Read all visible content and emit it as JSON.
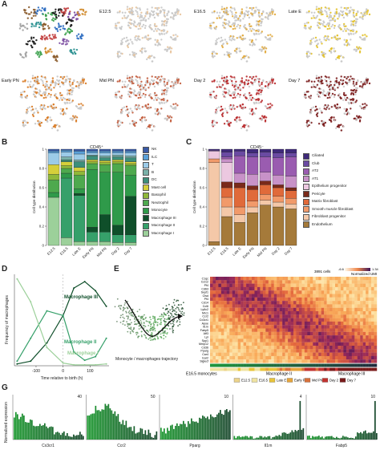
{
  "panels": {
    "a": "A",
    "b": "B",
    "c": "C",
    "d": "D",
    "e": "E",
    "f": "F",
    "g": "G"
  },
  "umap": {
    "titles": [
      "",
      "E12.5",
      "E16.5",
      "Late E",
      "Early PN",
      "Mid PN",
      "Day 2",
      "Day 7"
    ],
    "colors": [
      "#c47a2c",
      "#e8c39a",
      "#e1a93a",
      "#e3c128",
      "#d87a24",
      "#c25a3a",
      "#b8282a",
      "#7a1a1a"
    ]
  },
  "stage_labels": [
    "E12.5",
    "E16.5",
    "Late E",
    "Early PN",
    "Mid PN",
    "Day 2",
    "Day 7"
  ],
  "stage_colors": [
    "#ecd38a",
    "#f0e3a0",
    "#e8c43a",
    "#e6a53c",
    "#d8703a",
    "#c2322f",
    "#7a1a1a"
  ],
  "panel_b": {
    "title": "CD45⁺",
    "ylabel": "Cell type distribution",
    "ticks": [
      "1",
      "0.8",
      "0.6",
      "0.4",
      "0.2",
      "0"
    ],
    "legend": [
      {
        "name": "NK",
        "color": "#3a5aa6"
      },
      {
        "name": "ILC",
        "color": "#5aa0d8"
      },
      {
        "name": "T",
        "color": "#9ccbe8"
      },
      {
        "name": "B",
        "color": "#7ab0a8"
      },
      {
        "name": "DC",
        "color": "#3d8f7a"
      },
      {
        "name": "Mast cell",
        "color": "#d6cf3a"
      },
      {
        "name": "Basophil",
        "color": "#8fb83a"
      },
      {
        "name": "Neutrophil",
        "color": "#4ea94e"
      },
      {
        "name": "Monocyte",
        "color": "#2f9a4a"
      },
      {
        "name": "Macrophage III",
        "color": "#0f4f2a"
      },
      {
        "name": "Macrophage II",
        "color": "#36a06a"
      },
      {
        "name": "Macrophage I",
        "color": "#9cd09a"
      }
    ]
  },
  "panel_c": {
    "title": "CD45⁻",
    "ylabel": "Cell type distribution",
    "ticks": [
      "1",
      "0.8",
      "0.6",
      "0.4",
      "0.2",
      "0"
    ],
    "legend": [
      {
        "name": "Ciliated",
        "color": "#3f2a7a"
      },
      {
        "name": "Club",
        "color": "#6a4aa2"
      },
      {
        "name": "AT2",
        "color": "#9a5cb0"
      },
      {
        "name": "AT1",
        "color": "#c892c8"
      },
      {
        "name": "Epithelium progenitor",
        "color": "#ecc8e0"
      },
      {
        "name": "Pericyte",
        "color": "#7a2a1a"
      },
      {
        "name": "Matrix fibroblast",
        "color": "#e06a3a"
      },
      {
        "name": "Smooth muscle fibroblast",
        "color": "#f19a6a"
      },
      {
        "name": "Fibroblast progenitor",
        "color": "#f4c8a8"
      },
      {
        "name": "Endothelium",
        "color": "#a57a3a"
      }
    ]
  },
  "chart_data": [
    {
      "type": "bar",
      "title": "CD45⁺",
      "ylabel": "Cell type distribution",
      "categories": [
        "E12.5",
        "E16.5",
        "Late E",
        "Early PN",
        "Mid PN",
        "Day 2",
        "Day 7"
      ],
      "ylim": [
        0,
        1
      ],
      "series": [
        {
          "name": "Macrophage I",
          "values": [
            0.5,
            0.08,
            0.04,
            0.04,
            0.04,
            0.03,
            0.03
          ]
        },
        {
          "name": "Macrophage II",
          "values": [
            0.0,
            0.62,
            0.48,
            0.1,
            0.1,
            0.08,
            0.08
          ]
        },
        {
          "name": "Macrophage III",
          "values": [
            0.0,
            0.0,
            0.02,
            0.05,
            0.18,
            0.1,
            0.4
          ]
        },
        {
          "name": "Monocyte",
          "values": [
            0.05,
            0.05,
            0.05,
            0.6,
            0.44,
            0.55,
            0.22
          ]
        },
        {
          "name": "Neutrophil",
          "values": [
            0.13,
            0.05,
            0.14,
            0.06,
            0.08,
            0.09,
            0.1
          ]
        },
        {
          "name": "Basophil",
          "values": [
            0.06,
            0.03,
            0.04,
            0.02,
            0.02,
            0.02,
            0.02
          ]
        },
        {
          "name": "Mast cell",
          "values": [
            0.1,
            0.04,
            0.04,
            0.02,
            0.02,
            0.02,
            0.02
          ]
        },
        {
          "name": "DC",
          "values": [
            0.0,
            0.02,
            0.06,
            0.04,
            0.03,
            0.03,
            0.04
          ]
        },
        {
          "name": "B",
          "values": [
            0.0,
            0.03,
            0.02,
            0.01,
            0.02,
            0.02,
            0.02
          ]
        },
        {
          "name": "T",
          "values": [
            0.12,
            0.05,
            0.06,
            0.02,
            0.03,
            0.02,
            0.03
          ]
        },
        {
          "name": "ILC",
          "values": [
            0.02,
            0.02,
            0.03,
            0.02,
            0.02,
            0.02,
            0.02
          ]
        },
        {
          "name": "NK",
          "values": [
            0.02,
            0.01,
            0.02,
            0.02,
            0.02,
            0.02,
            0.02
          ]
        }
      ]
    },
    {
      "type": "bar",
      "title": "CD45⁻",
      "ylabel": "Cell type distribution",
      "categories": [
        "E12.5",
        "E16.5",
        "Late E",
        "Early PN",
        "Mid PN",
        "Day 2",
        "Day 7"
      ],
      "ylim": [
        0,
        1
      ],
      "series": [
        {
          "name": "Endothelium",
          "values": [
            0.04,
            0.3,
            0.24,
            0.34,
            0.42,
            0.4,
            0.38
          ]
        },
        {
          "name": "Fibroblast progenitor",
          "values": [
            0.82,
            0.1,
            0.08,
            0.06,
            0.05,
            0.05,
            0.05
          ]
        },
        {
          "name": "Smooth muscle fibroblast",
          "values": [
            0.04,
            0.1,
            0.08,
            0.06,
            0.06,
            0.06,
            0.06
          ]
        },
        {
          "name": "Matrix fibroblast",
          "values": [
            0.0,
            0.1,
            0.2,
            0.12,
            0.1,
            0.09,
            0.08
          ]
        },
        {
          "name": "Pericyte",
          "values": [
            0.0,
            0.06,
            0.05,
            0.04,
            0.04,
            0.03,
            0.03
          ]
        },
        {
          "name": "Epithelium progenitor",
          "values": [
            0.08,
            0.2,
            0.0,
            0.0,
            0.0,
            0.0,
            0.0
          ]
        },
        {
          "name": "AT1",
          "values": [
            0.0,
            0.04,
            0.1,
            0.12,
            0.09,
            0.1,
            0.12
          ]
        },
        {
          "name": "AT2",
          "values": [
            0.0,
            0.02,
            0.18,
            0.18,
            0.16,
            0.18,
            0.2
          ]
        },
        {
          "name": "Club",
          "values": [
            0.01,
            0.05,
            0.05,
            0.04,
            0.05,
            0.05,
            0.04
          ]
        },
        {
          "name": "Ciliated",
          "values": [
            0.01,
            0.03,
            0.02,
            0.04,
            0.03,
            0.04,
            0.04
          ]
        }
      ]
    },
    {
      "type": "line",
      "xlabel": "Time relative to birth (h)",
      "ylabel": "Frequency of macrophages",
      "xticks": [
        "-100",
        "0",
        "100"
      ],
      "series": [
        {
          "name": "Macrophage III",
          "color": "#0f4f2a",
          "x": [
            -170,
            -120,
            -60,
            0,
            40,
            80,
            120,
            160
          ],
          "values": [
            0.02,
            0.05,
            0.25,
            0.55,
            0.85,
            0.92,
            0.82,
            0.65
          ]
        },
        {
          "name": "Macrophage II",
          "color": "#36a06a",
          "x": [
            -170,
            -120,
            -60,
            0,
            40,
            80,
            120,
            160
          ],
          "values": [
            0.05,
            0.3,
            0.6,
            0.55,
            0.15,
            0.06,
            0.1,
            0.3
          ]
        },
        {
          "name": "Macrophage I",
          "color": "#9cd09a",
          "x": [
            -170,
            -120,
            -60,
            0,
            40,
            80,
            120,
            160
          ],
          "values": [
            0.95,
            0.7,
            0.2,
            0.03,
            0.01,
            0.01,
            0.01,
            0.02
          ]
        }
      ]
    },
    {
      "type": "bar",
      "ylabel": "Normalized expression",
      "categories": [
        "Cx3cr1",
        "Ccr2",
        "Pparg",
        "Il1rn",
        "Fabp5"
      ],
      "ymax_labels": [
        "40",
        "50",
        "10",
        "4",
        "10"
      ]
    }
  ],
  "panel_d": {
    "ylabel": "Frequency of macrophages",
    "xlabel": "Time relative to birth (h)",
    "xticks": [
      "-100",
      "0",
      "100"
    ],
    "labels": [
      "Macrophage III",
      "Macrophage II",
      "Macrophage I"
    ]
  },
  "panel_e": {
    "caption": "Monocyte / macrophages trajectory"
  },
  "panel_f": {
    "cells": "3891 cells",
    "scale_min": "-6.6",
    "scale_max": "1.34",
    "scale_label": "Normalized UMI",
    "genes": [
      "C1qc",
      "Ccl12",
      "Pf4",
      "Cd63",
      "Sept1",
      "Ctsd",
      "Pf4",
      "Cd14",
      "Ccl6",
      "Ly6c2",
      "Mrc1",
      "Ccr2",
      "Cx3cr1",
      "Apoe",
      "Il1rn",
      "Fabp5",
      "Atf3",
      "Lpl",
      "Spp1",
      "Mmp12",
      "Cd36",
      "Pparg",
      "Car4",
      "Ear2",
      "Siglecf"
    ],
    "bottom_labels": [
      "E16.5 monocytes",
      "Macrophage II",
      "Macrophage III"
    ],
    "stage_legend": [
      "E12.5",
      "E16.5",
      "Late E",
      "Early PN",
      "Mid PN",
      "Day 2",
      "Day 7"
    ]
  },
  "panel_g": {
    "ylabel": "Normalized expression",
    "genes": [
      "Cx3cr1",
      "Ccr2",
      "Pparg",
      "Il1rn",
      "Fabp5"
    ],
    "max_labels": [
      "40",
      "50",
      "10",
      "4",
      "10"
    ]
  }
}
